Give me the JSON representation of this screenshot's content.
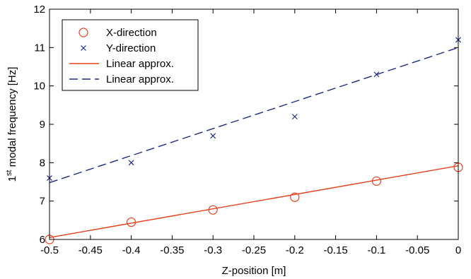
{
  "chart_data": {
    "type": "line",
    "title": "",
    "xlabel": "Z-position [m]",
    "ylabel_base": "1",
    "ylabel_sup": "st",
    "ylabel_rest": " modal frequency [Hz]",
    "xlim": [
      -0.5,
      0
    ],
    "ylim": [
      6,
      12
    ],
    "xticks": [
      -0.5,
      -0.45,
      -0.4,
      -0.35,
      -0.3,
      -0.25,
      -0.2,
      -0.15,
      -0.1,
      -0.05,
      0
    ],
    "xtick_labels": [
      "-0.5",
      "-0.45",
      "-0.4",
      "-0.35",
      "-0.3",
      "-0.25",
      "-0.2",
      "-0.15",
      "-0.1",
      "-0.05",
      "0"
    ],
    "yticks": [
      6,
      7,
      8,
      9,
      10,
      11,
      12
    ],
    "ytick_labels": [
      "6",
      "7",
      "8",
      "9",
      "10",
      "11",
      "12"
    ],
    "grid": false,
    "legend_position": "top-left",
    "series": [
      {
        "name": "X-direction",
        "kind": "scatter",
        "marker": "circle",
        "color": "#e8401c",
        "x": [
          -0.5,
          -0.4,
          -0.3,
          -0.2,
          -0.1,
          0
        ],
        "y": [
          6.0,
          6.45,
          6.77,
          7.1,
          7.52,
          7.88
        ]
      },
      {
        "name": "Y-direction",
        "kind": "scatter",
        "marker": "x",
        "color": "#1c2b8c",
        "x": [
          -0.5,
          -0.4,
          -0.3,
          -0.2,
          -0.1,
          0
        ],
        "y": [
          7.6,
          8.0,
          8.7,
          9.2,
          10.3,
          11.2
        ]
      },
      {
        "name": "Linear approx.",
        "kind": "line",
        "style": "solid",
        "color": "#e8401c",
        "x": [
          -0.5,
          0
        ],
        "y": [
          6.05,
          7.92
        ]
      },
      {
        "name": "Linear approx.",
        "kind": "line",
        "style": "dashed",
        "color": "#1c2b8c",
        "x": [
          -0.5,
          0
        ],
        "y": [
          7.48,
          11.0
        ]
      }
    ]
  }
}
